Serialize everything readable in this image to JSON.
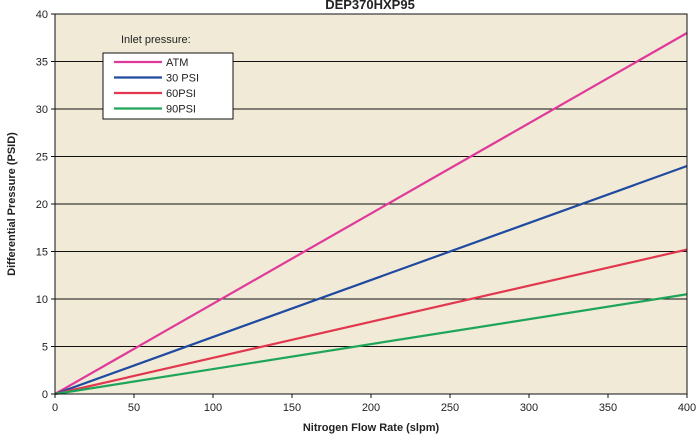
{
  "chart_data": {
    "type": "line",
    "title": "DEP370HXP95",
    "xlabel": "Nitrogen Flow Rate (slpm)",
    "ylabel": "Differential Pressure (PSID)",
    "xlim": [
      0,
      400
    ],
    "ylim": [
      0,
      40
    ],
    "xticks": [
      "0",
      "50",
      "100",
      "150",
      "200",
      "250",
      "300",
      "350",
      "400"
    ],
    "yticks": [
      "0",
      "5",
      "10",
      "15",
      "20",
      "25",
      "30",
      "35",
      "40"
    ],
    "grid": "horizontal",
    "legend_title": "Inlet pressure:",
    "legend_position": "top-left",
    "series": [
      {
        "name": "ATM",
        "color": "#e0399a",
        "x": [
          0,
          400
        ],
        "y": [
          0,
          38
        ]
      },
      {
        "name": "30 PSI",
        "color": "#1f4aa0",
        "x": [
          0,
          400
        ],
        "y": [
          0,
          24
        ]
      },
      {
        "name": "60PSI",
        "color": "#e2384f",
        "x": [
          0,
          400
        ],
        "y": [
          0,
          15.2
        ]
      },
      {
        "name": "90PSI",
        "color": "#1fa55a",
        "x": [
          0,
          400
        ],
        "y": [
          0,
          10.5
        ]
      }
    ]
  },
  "colors": {
    "plot_background": "#f0ead7",
    "grid": "#111111"
  }
}
